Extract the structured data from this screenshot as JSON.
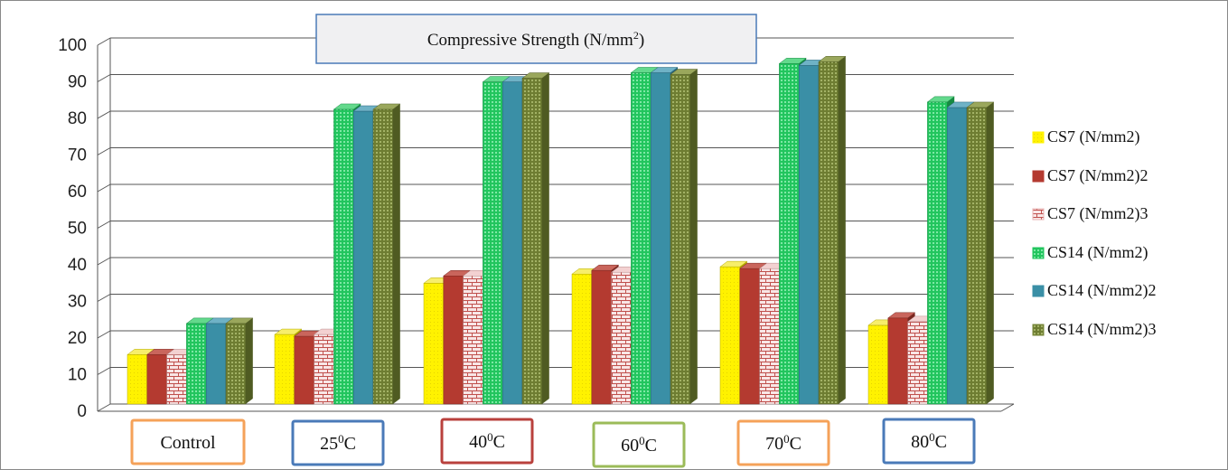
{
  "chart_data": {
    "type": "bar",
    "title": "Compressive Strength (N/mm",
    "title_sup": "2",
    "title_tail": ")",
    "categories": [
      {
        "label": "Control",
        "sup": "",
        "tail": "",
        "box_color": "#f5a259"
      },
      {
        "label": "25",
        "sup": "0",
        "tail": "C",
        "box_color": "#4a7ab8"
      },
      {
        "label": "40",
        "sup": "0",
        "tail": "C",
        "box_color": "#b9413d"
      },
      {
        "label": "60",
        "sup": "0",
        "tail": "C",
        "box_color": "#9bbb59"
      },
      {
        "label": "70",
        "sup": "0",
        "tail": "C",
        "box_color": "#f5a259"
      },
      {
        "label": "80",
        "sup": "0",
        "tail": "C",
        "box_color": "#4a7ab8"
      }
    ],
    "series": [
      {
        "name": "CS7 (N/mm2)",
        "color": "#fff200",
        "values": [
          13.5,
          19,
          33,
          35.5,
          37.5,
          21.5
        ]
      },
      {
        "name": "CS7 (N/mm2)2",
        "color": "#b43a30",
        "values": [
          13.5,
          18.5,
          35,
          36.5,
          37,
          23.5
        ]
      },
      {
        "name": "CS7 (N/mm2)3",
        "color": "#e8b4b4",
        "values": [
          13.5,
          19,
          35,
          36,
          37,
          22.5
        ]
      },
      {
        "name": "CS14 (N/mm2)",
        "color": "#22c55e",
        "values": [
          22,
          80.5,
          88,
          90.5,
          93,
          82.5
        ]
      },
      {
        "name": "CS14 (N/mm2)2",
        "color": "#3a8fa6",
        "values": [
          22,
          80,
          88,
          90.5,
          92.5,
          81
        ]
      },
      {
        "name": "CS14 (N/mm2)3",
        "color": "#7a8a3c",
        "values": [
          22,
          80.5,
          89,
          90,
          93.5,
          81
        ]
      }
    ],
    "y_ticks": [
      "0",
      "10",
      "20",
      "30",
      "40",
      "50",
      "60",
      "70",
      "80",
      "90",
      "100"
    ],
    "ylim": [
      0,
      100
    ],
    "grid": true,
    "legend_position": "right"
  }
}
